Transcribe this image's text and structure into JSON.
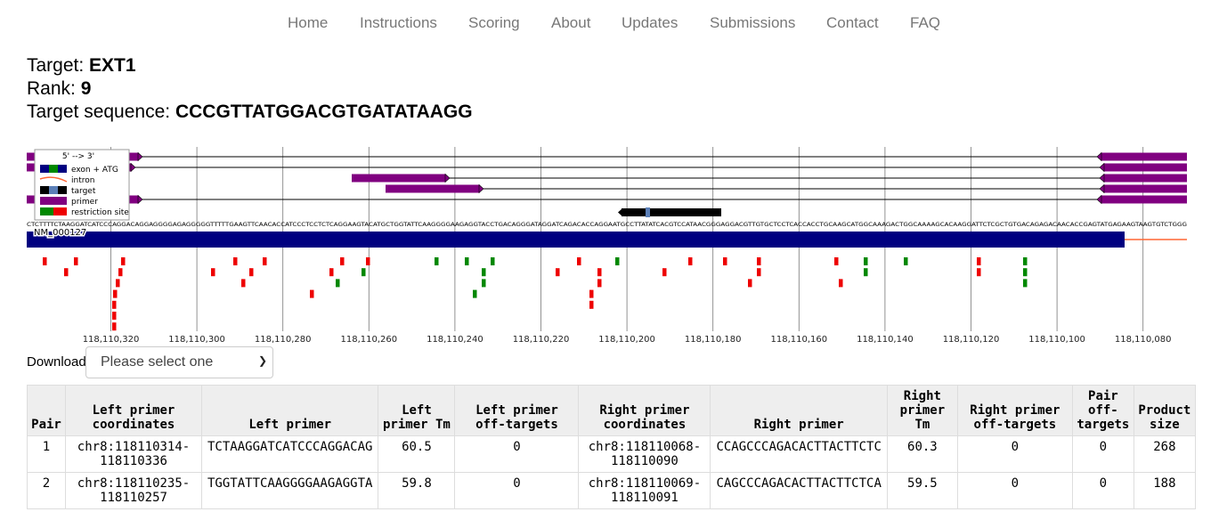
{
  "nav": [
    "Home",
    "Instructions",
    "Scoring",
    "About",
    "Updates",
    "Submissions",
    "Contact",
    "FAQ"
  ],
  "target": {
    "label": "Target: ",
    "name": "EXT1",
    "rank_label": "Rank: ",
    "rank": "9",
    "seq_label": "Target sequence: ",
    "sequence": "CCCGTTATGGACGTGATATAAGG"
  },
  "legend": {
    "title": "5' --> 3'",
    "items": [
      "exon + ATG",
      "intron",
      "target",
      "primer",
      "restriction site"
    ]
  },
  "transcript": "NM_000127",
  "genomic_sequence": "CTCTTTTCTAAGGATCATCCCAGGACAGGAGGGGAGAGGGGGTTTTTGAAGTTCAACACCATCCCTCCTCTCAGGAAGTACATGCTGGTATTCAAGGGGAAGAGGTACCTGACAGGGATAGGATCAGACACCAGGAATGCCTTATATCACGTCCATAACGGGAGGACGTTGTGCTCCTCACCACCTGCAAGCATGGCAAAGACTGGCAAAAGCACAAGGATTCTCGCTGTGACAGAGACAACACCGAGTATGAGAAGTAAGTGTCTGGG",
  "axis_ticks": [
    "118,110,320",
    "118,110,300",
    "118,110,280",
    "118,110,260",
    "118,110,240",
    "118,110,220",
    "118,110,200",
    "118,110,180",
    "118,110,160",
    "118,110,140",
    "118,110,120",
    "118,110,100",
    "118,110,080"
  ],
  "download": {
    "label": "Download:",
    "placeholder": "Please select one"
  },
  "table": {
    "headers": [
      "Pair",
      "Left primer coordinates",
      "Left primer",
      "Left primer Tm",
      "Left primer off-targets",
      "Right primer coordinates",
      "Right primer",
      "Right primer Tm",
      "Right primer off-targets",
      "Pair off-targets",
      "Product size"
    ],
    "rows": [
      [
        "1",
        "chr8:118110314-118110336",
        "TCTAAGGATCATCCCAGGACAG",
        "60.5",
        "0",
        "chr8:118110068-118110090",
        "CCAGCCCAGACACTTACTTCTC",
        "60.3",
        "0",
        "0",
        "268"
      ],
      [
        "2",
        "chr8:118110235-118110257",
        "TGGTATTCAAGGGGAAGAGGTA",
        "59.8",
        "0",
        "chr8:118110069-118110091",
        "CAGCCCAGACACTTACTTCTCA",
        "59.5",
        "0",
        "0",
        "188"
      ]
    ]
  },
  "colors": {
    "exon": "#000080",
    "primer": "#800080",
    "intron": "#ff6633",
    "restriction_red": "#ee0000",
    "restriction_green": "#008800",
    "target": "#000000",
    "nav": "#777777"
  }
}
